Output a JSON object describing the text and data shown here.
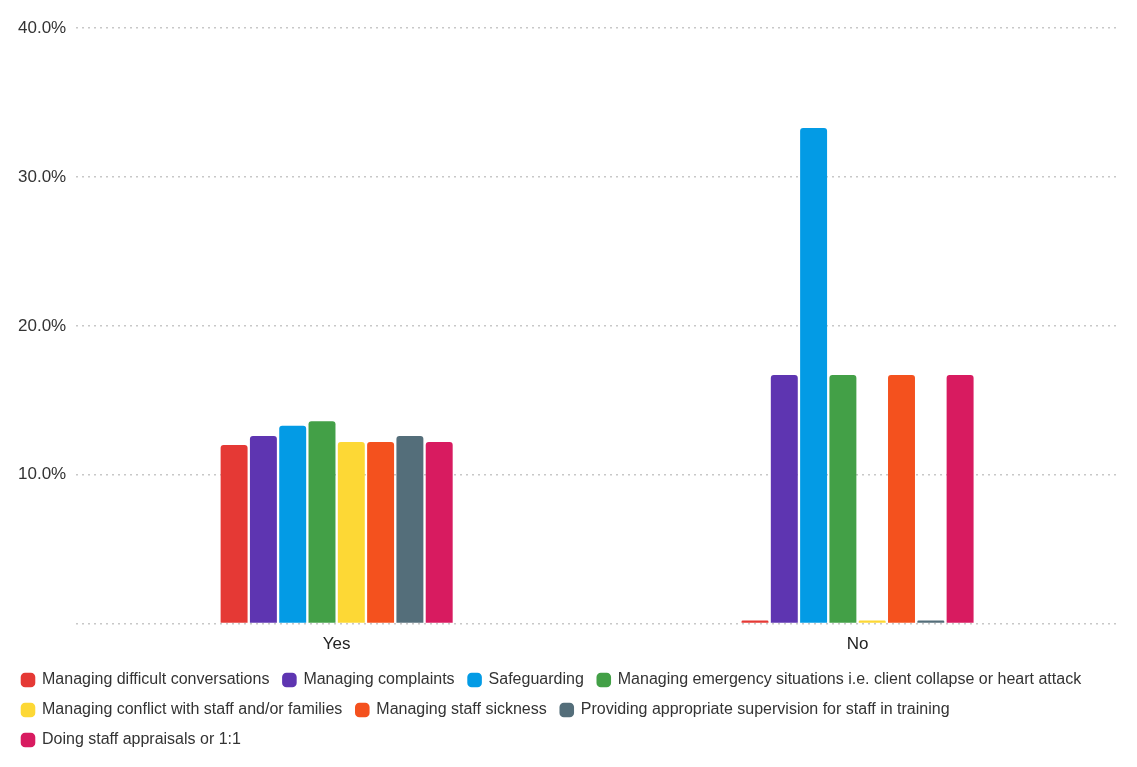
{
  "chart_data": {
    "type": "bar",
    "categories": [
      "Yes",
      "No"
    ],
    "series": [
      {
        "name": "Managing difficult conversations",
        "color": "#e53935",
        "values": [
          12.0,
          0
        ]
      },
      {
        "name": "Managing complaints",
        "color": "#5e35b1",
        "values": [
          12.6,
          16.7
        ]
      },
      {
        "name": "Safeguarding",
        "color": "#039be5",
        "values": [
          13.3,
          33.3
        ]
      },
      {
        "name": "Managing emergency situations i.e. client collapse or heart attack",
        "color": "#43a047",
        "values": [
          13.6,
          16.7
        ]
      },
      {
        "name": "Managing conflict with staff and/or families",
        "color": "#fdd835",
        "values": [
          12.2,
          0
        ]
      },
      {
        "name": "Managing staff sickness",
        "color": "#f4511e",
        "values": [
          12.2,
          16.7
        ]
      },
      {
        "name": "Providing appropriate supervision for staff in training",
        "color": "#546e7a",
        "values": [
          12.6,
          0
        ]
      },
      {
        "name": "Doing staff appraisals or 1:1",
        "color": "#d81b60",
        "values": [
          12.2,
          16.7
        ]
      }
    ],
    "ylim": [
      0,
      40
    ],
    "yticks": [
      {
        "value": 0,
        "label": null
      },
      {
        "value": 10,
        "label": "10.0%"
      },
      {
        "value": 20,
        "label": "20.0%"
      },
      {
        "value": 30,
        "label": "30.0%"
      },
      {
        "value": 40,
        "label": "40.0%"
      }
    ],
    "grid": "y",
    "legend": "bottom"
  }
}
